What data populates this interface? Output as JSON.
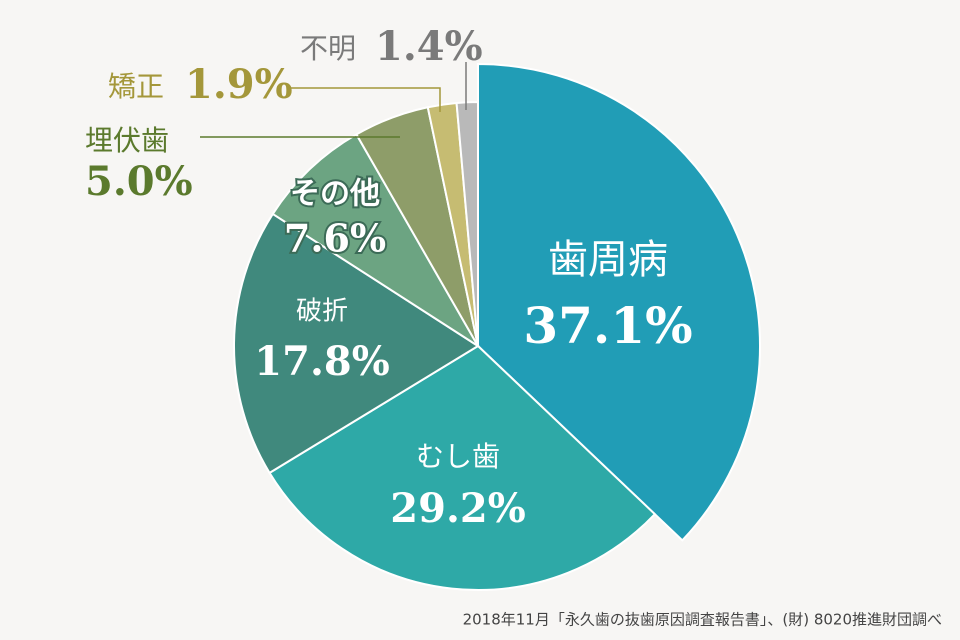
{
  "chart_data": {
    "type": "pie",
    "categories": [
      "歯周病",
      "むし歯",
      "破折",
      "その他",
      "埋伏歯",
      "矯正",
      "不明"
    ],
    "values": [
      37.1,
      29.2,
      17.8,
      7.6,
      5.0,
      1.9,
      1.4
    ],
    "value_labels": [
      "37.1%",
      "29.2%",
      "17.8%",
      "7.6%",
      "5.0%",
      "1.9%",
      "1.4%"
    ],
    "colors": [
      "#219db6",
      "#2ea9a7",
      "#40897d",
      "#6ca482",
      "#8e9d69",
      "#c6bc72",
      "#b9b9b9"
    ],
    "source": "2018年11月「永久歯の抜歯原因調査報告書」、(財) 8020推進財団調べ"
  }
}
